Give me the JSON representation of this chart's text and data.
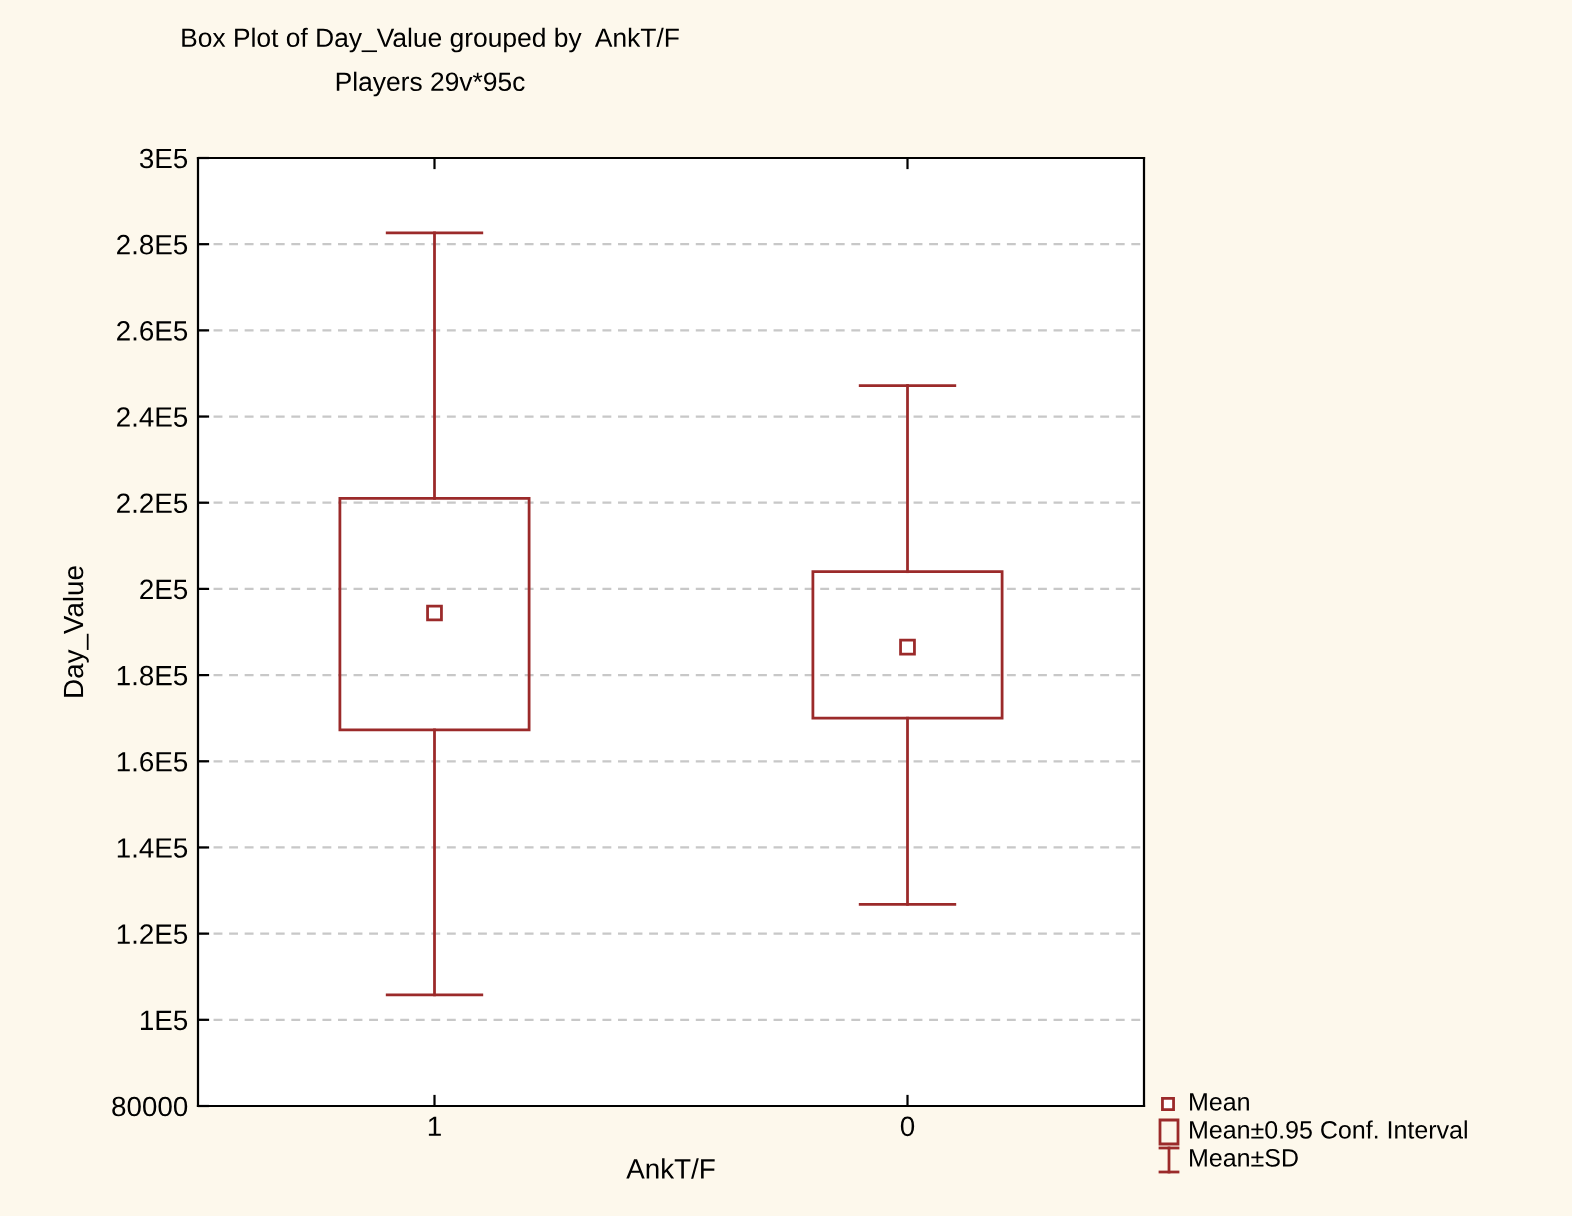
{
  "chart_data": {
    "type": "box",
    "title": "Box Plot of Day_Value grouped by  AnkT/F",
    "subtitle": "Players 29v*95c",
    "xlabel": "AnkT/F",
    "ylabel": "Day_Value",
    "categories": [
      "1",
      "0"
    ],
    "boxes": [
      {
        "low": 105800,
        "q1": 167300,
        "q3": 221000,
        "high": 282600,
        "mean": 194400
      },
      {
        "low": 126800,
        "q1": 170000,
        "q3": 204000,
        "high": 247200,
        "mean": 186500
      }
    ],
    "color": "#9b2a2a",
    "ylim": [
      80000,
      300000
    ],
    "yticks": [
      80000,
      {
        "value": 100000,
        "label": "1E5"
      },
      {
        "value": 120000,
        "label": "1.2E5"
      },
      {
        "value": 140000,
        "label": "1.4E5"
      },
      {
        "value": 160000,
        "label": "1.6E5"
      },
      {
        "value": 180000,
        "label": "1.8E5"
      },
      {
        "value": 200000,
        "label": "2E5"
      },
      {
        "value": 220000,
        "label": "2.2E5"
      },
      {
        "value": 240000,
        "label": "2.4E5"
      },
      {
        "value": 260000,
        "label": "2.6E5"
      },
      {
        "value": 280000,
        "label": "2.8E5"
      },
      {
        "value": 300000,
        "label": "3E5"
      }
    ],
    "grid": "y",
    "marker": "square",
    "annotations": [
      "Mean",
      "Mean±0.95 Conf. Interval",
      "Mean±SD"
    ]
  }
}
